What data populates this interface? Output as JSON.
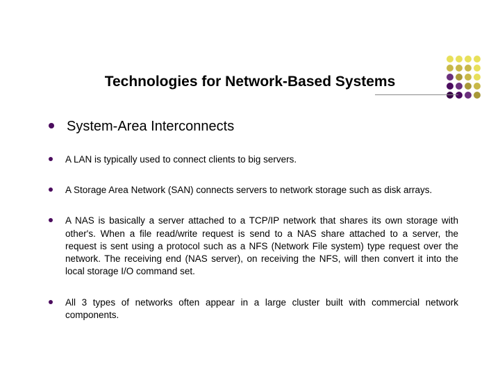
{
  "title": "Technologies for Network-Based Systems",
  "bullets": {
    "main": "System-Area Interconnects",
    "b1": "A LAN is typically used to connect clients to big servers.",
    "b2": "A Storage Area Network (SAN) connects servers to network storage such as disk arrays.",
    "b3": "A NAS is basically a server attached to a TCP/IP network that shares its own storage with other's. When a file read/write request is send to a NAS share attached to a server, the request is sent using a protocol such as a NFS (Network File system) type request over the network. The receiving end (NAS server), on receiving the NFS, will then convert it into the local storage I/O command set.",
    "b4": " All 3 types of networks often appear in a large cluster built with commercial network components."
  },
  "styling": {
    "title_fontsize": 21,
    "title_color": "#000000",
    "main_bullet_fontsize": 20,
    "sub_bullet_fontsize": 13.5,
    "bullet_color": "#4b0c5e",
    "text_color": "#000000",
    "background_color": "#ffffff",
    "sub_text_align": "justify"
  },
  "decoration": {
    "columns": 4,
    "rows": 5,
    "dot_size": 10,
    "gap": 3,
    "colors": [
      "#e8e05a",
      "#e8e05a",
      "#e8e05a",
      "#e8e05a",
      "#c8b848",
      "#c8b848",
      "#c8b848",
      "#e8e05a",
      "#6a2f7d",
      "#a89838",
      "#c8b848",
      "#e8e05a",
      "#4b0c5e",
      "#6a2f7d",
      "#a89838",
      "#c8b848",
      "#3a0848",
      "#4b0c5e",
      "#6a2f7d",
      "#a89838"
    ]
  }
}
